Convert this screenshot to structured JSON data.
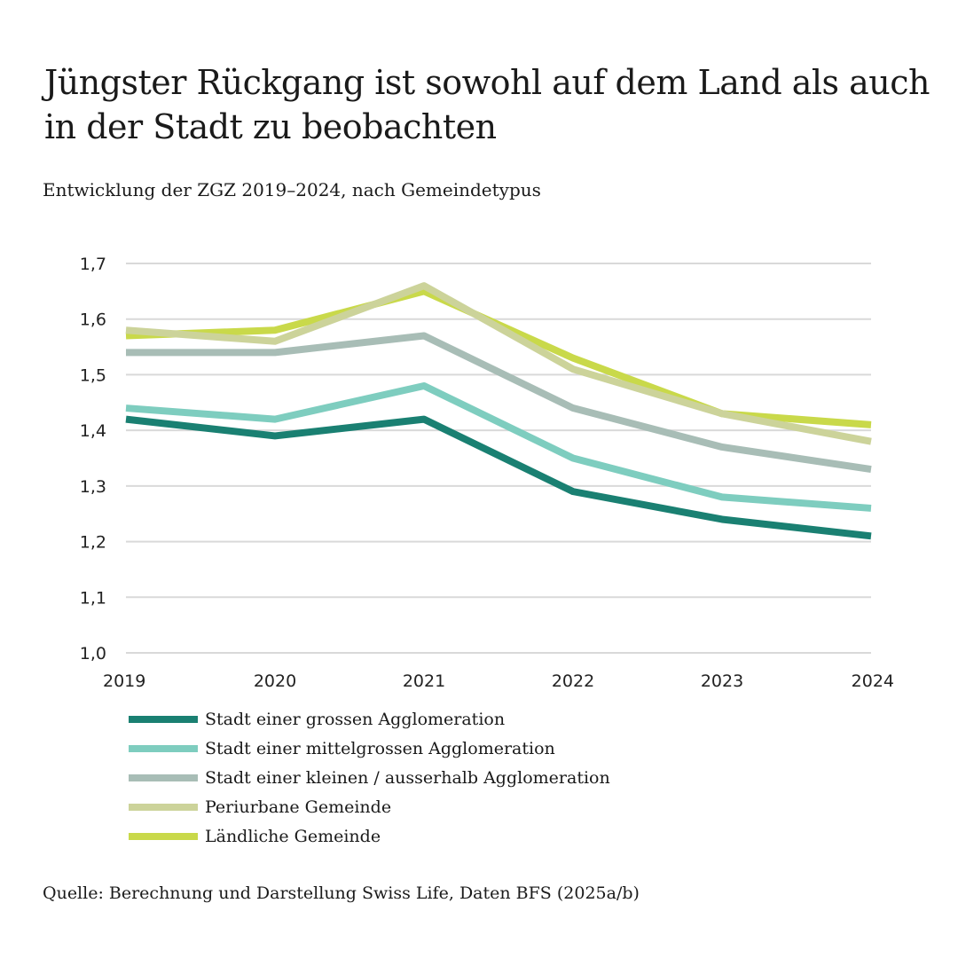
{
  "title": "Jüngster Rückgang ist sowohl auf dem Land als auch in der Stadt zu beobachten",
  "subtitle": "Entwicklung der ZGZ 2019–2024, nach Gemeindetypus",
  "source": "Quelle: Berechnung und Darstellung Swiss Life, Daten BFS (2025a/b)",
  "chart_data": {
    "type": "line",
    "x": [
      "2019",
      "2020",
      "2021",
      "2022",
      "2023",
      "2024"
    ],
    "ylim": [
      1.0,
      1.7
    ],
    "yticks": [
      1.0,
      1.1,
      1.2,
      1.3,
      1.4,
      1.5,
      1.6,
      1.7
    ],
    "ytick_labels": [
      "1,0",
      "1,1",
      "1,2",
      "1,3",
      "1,4",
      "1,5",
      "1,6",
      "1,7"
    ],
    "grid": true,
    "legend_position": "bottom",
    "series": [
      {
        "name": "Ländliche Gemeinde",
        "color": "#c9d94a",
        "values": [
          1.57,
          1.58,
          1.65,
          1.53,
          1.43,
          1.41
        ]
      },
      {
        "name": "Periurbane Gemeinde",
        "color": "#ccd39a",
        "values": [
          1.58,
          1.56,
          1.66,
          1.51,
          1.43,
          1.38
        ]
      },
      {
        "name": "Stadt einer kleinen / ausserhalb Agglomeration",
        "color": "#a8bdb6",
        "values": [
          1.54,
          1.54,
          1.57,
          1.44,
          1.37,
          1.33
        ]
      },
      {
        "name": "Stadt einer mittelgrossen Agglomeration",
        "color": "#7ecdbf",
        "values": [
          1.44,
          1.42,
          1.48,
          1.35,
          1.28,
          1.26
        ]
      },
      {
        "name": "Stadt einer grossen Agglomeration",
        "color": "#1a8072",
        "values": [
          1.42,
          1.39,
          1.42,
          1.29,
          1.24,
          1.21
        ]
      }
    ],
    "legend_order": [
      "Stadt einer grossen Agglomeration",
      "Stadt einer mittelgrossen Agglomeration",
      "Stadt einer kleinen / ausserhalb Agglomeration",
      "Periurbane Gemeinde",
      "Ländliche Gemeinde"
    ]
  }
}
